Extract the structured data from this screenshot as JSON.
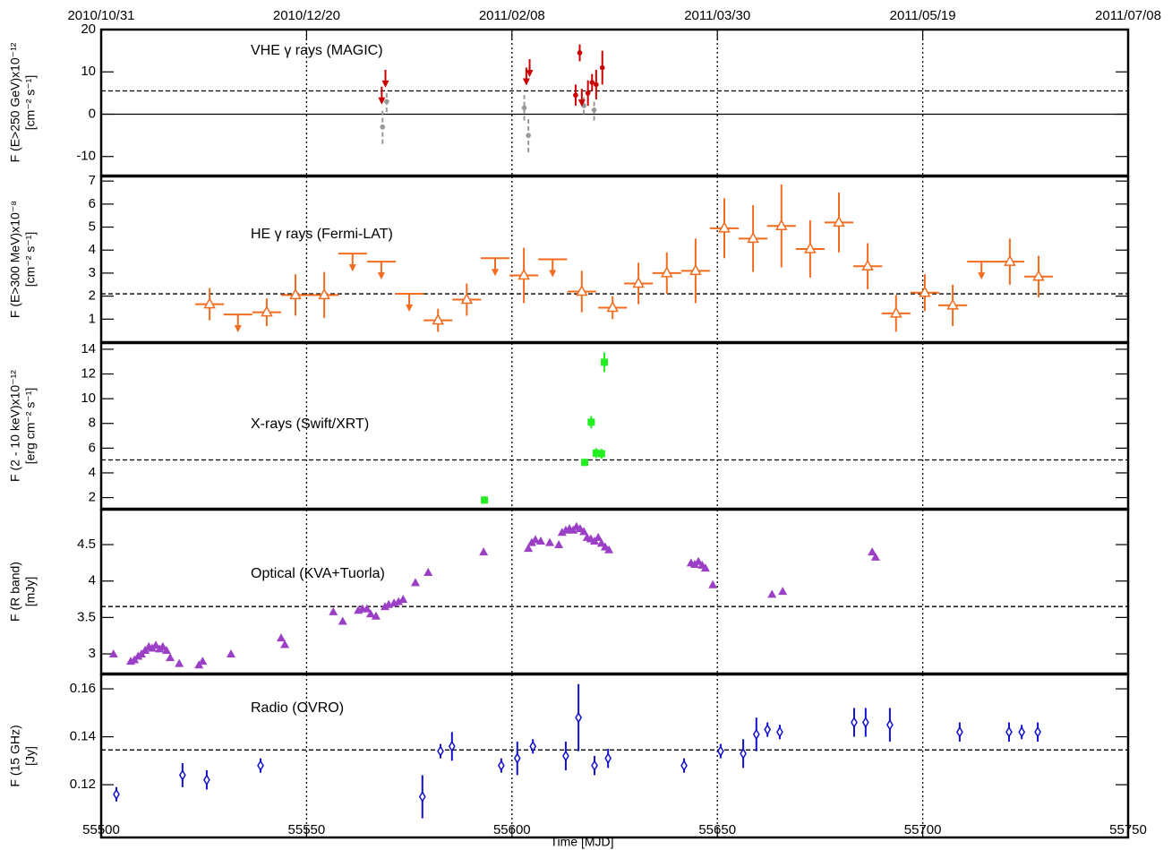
{
  "chart_data": [
    {
      "type": "scatter",
      "title": "VHE γ rays (MAGIC)",
      "ylabel": [
        "F (E>250 GeV)x10⁻¹²",
        "[cm⁻² s⁻¹]"
      ],
      "ylim": [
        -14.5,
        20
      ],
      "yticks": [
        -10,
        0,
        10,
        20
      ],
      "baseline": 5.5,
      "zero_line": true,
      "x2ticks": [
        {
          "value": 55500,
          "label": "2010/10/31"
        },
        {
          "value": 55550,
          "label": "2010/12/20"
        },
        {
          "value": 55600,
          "label": "2011/02/08"
        },
        {
          "value": 55650,
          "label": "2011/03/30"
        },
        {
          "value": 55700,
          "label": "2011/05/19"
        },
        {
          "value": 55750,
          "label": "2011/07/08"
        }
      ],
      "series": [
        {
          "color": "#999999",
          "marker": "circle",
          "dashed": true,
          "x": [
            55568.5,
            55569.5,
            55603,
            55604,
            55617.5,
            55620
          ],
          "values": [
            -3,
            3,
            1.5,
            -5,
            2,
            1
          ],
          "errors": [
            4,
            2.5,
            3,
            4,
            2,
            2.5
          ]
        },
        {
          "color": "#cc0000",
          "marker": "circle",
          "x": [
            55615.5,
            55616.5,
            55618.5,
            55619.5,
            55620.5,
            55622
          ],
          "values": [
            4.5,
            14.5,
            5,
            7.5,
            7,
            11
          ],
          "errors": [
            2.5,
            2,
            3,
            2,
            3.5,
            4
          ]
        },
        {
          "color": "#cc0000",
          "upper_limit": true,
          "x": [
            55568.3,
            55569.2,
            55603.5,
            55604.3,
            55617
          ],
          "values": [
            6.5,
            10.5,
            11,
            13,
            6
          ]
        }
      ]
    },
    {
      "type": "scatter",
      "title": "HE γ rays (Fermi-LAT)",
      "ylabel": [
        "F (E>300 MeV)x10⁻⁸",
        "[cm⁻² s⁻¹]"
      ],
      "ylim": [
        0,
        7.2
      ],
      "yticks": [
        1,
        2,
        3,
        4,
        5,
        6,
        7
      ],
      "baseline": 2.1,
      "x_halfwidth": 3.5,
      "series": [
        {
          "color": "#f26b1f",
          "marker": "triangle-open",
          "x": [
            55526.4,
            55540.3,
            55547.3,
            55554.3,
            55582,
            55589,
            55602.9,
            55617,
            55624.5,
            55630.8,
            55637.7,
            55644.7,
            55651.7,
            55658.7,
            55665.6,
            55672.6,
            55679.6,
            55686.6,
            55693.5,
            55700.5,
            55707.3,
            55721.2,
            55728.2
          ],
          "values": [
            1.65,
            1.3,
            2.05,
            2.05,
            0.95,
            1.85,
            2.9,
            2.2,
            1.5,
            2.55,
            3.0,
            3.1,
            4.95,
            4.5,
            5.05,
            4.05,
            5.2,
            3.3,
            1.25,
            2.15,
            1.6,
            3.5,
            2.85
          ],
          "errors": [
            0.7,
            0.6,
            0.9,
            1.0,
            0.5,
            0.7,
            1.2,
            0.9,
            0.5,
            0.9,
            0.9,
            1.4,
            1.3,
            1.45,
            1.8,
            1.25,
            1.3,
            1.0,
            0.8,
            0.8,
            0.9,
            1.0,
            0.9
          ]
        },
        {
          "color": "#f26b1f",
          "upper_limit": true,
          "x": [
            55533.3,
            55561.2,
            55568.2,
            55575,
            55595.9,
            55609.9,
            55714.3
          ],
          "values": [
            1.2,
            3.85,
            3.5,
            2.1,
            3.65,
            3.6,
            3.5
          ]
        }
      ]
    },
    {
      "type": "scatter",
      "title": "X-rays (Swift/XRT)",
      "ylabel": [
        "F (2 - 10 keV)x10⁻¹²",
        "[erg cm⁻² s⁻¹]"
      ],
      "ylim": [
        1.1,
        14.5
      ],
      "yticks": [
        2,
        4,
        6,
        8,
        10,
        12,
        14
      ],
      "baseline": 5.05,
      "series": [
        {
          "color": "#22ee22",
          "marker": "square",
          "x": [
            55593.3,
            55617.7,
            55619.3,
            55620.5,
            55621.8,
            55622.5
          ],
          "values": [
            1.8,
            4.85,
            8.1,
            5.6,
            5.55,
            12.95
          ],
          "errors": [
            0.3,
            0.3,
            0.5,
            0.4,
            0.4,
            0.8
          ]
        }
      ]
    },
    {
      "type": "scatter",
      "title": "Optical (KVA+Tuorla)",
      "ylabel": [
        "F (R band)",
        "[mJy]"
      ],
      "ylim": [
        2.73,
        4.98
      ],
      "yticks": [
        3,
        3.5,
        4,
        4.5
      ],
      "baseline": 3.65,
      "series": [
        {
          "color": "#9b3fc6",
          "marker": "triangle",
          "x": [
            55503,
            55507.2,
            55508.1,
            55509,
            55509.8,
            55510.7,
            55511.6,
            55512.4,
            55513.3,
            55514.2,
            55515,
            55515.9,
            55516.8,
            55519,
            55523.8,
            55524.7,
            55531.6,
            55543.8,
            55544.7,
            55556.5,
            55558.8,
            55562.6,
            55563.6,
            55564.7,
            55565.6,
            55566.9,
            55569.1,
            55570,
            55571.3,
            55572.4,
            55573.5,
            55576.5,
            55579.6,
            55593.1,
            55604,
            55604.8,
            55605.7,
            55607,
            55609.2,
            55611.4,
            55612.2,
            55613.1,
            55614,
            55614.9,
            55615.7,
            55616.6,
            55617.5,
            55618.3,
            55619.2,
            55620.1,
            55621,
            55621.8,
            55622.7,
            55623.6,
            55643.6,
            55644.5,
            55645.4,
            55646.3,
            55647.1,
            55648.9,
            55663.3,
            55665.9,
            55687.7,
            55688.5
          ],
          "values": [
            3.0,
            2.9,
            2.92,
            2.97,
            3.0,
            3.05,
            3.1,
            3.08,
            3.12,
            3.07,
            3.1,
            3.05,
            2.95,
            2.87,
            2.85,
            2.9,
            3.0,
            3.22,
            3.13,
            3.58,
            3.45,
            3.6,
            3.62,
            3.62,
            3.55,
            3.52,
            3.65,
            3.68,
            3.7,
            3.72,
            3.75,
            3.98,
            4.12,
            4.4,
            4.45,
            4.53,
            4.57,
            4.55,
            4.53,
            4.5,
            4.67,
            4.7,
            4.72,
            4.7,
            4.75,
            4.72,
            4.68,
            4.6,
            4.58,
            4.55,
            4.6,
            4.52,
            4.47,
            4.43,
            4.25,
            4.23,
            4.27,
            4.22,
            4.18,
            3.95,
            3.82,
            3.86,
            4.4,
            4.33
          ]
        }
      ]
    },
    {
      "type": "scatter",
      "title": "Radio (OVRO)",
      "ylabel": [
        "F (15 GHz)",
        "[Jy]"
      ],
      "ylim": [
        0.098,
        0.166
      ],
      "yticks": [
        0.12,
        0.14,
        0.16
      ],
      "baseline": 0.1345,
      "xlim": [
        55500,
        55750
      ],
      "xticks": [
        55500,
        55550,
        55600,
        55650,
        55700,
        55750
      ],
      "xlabel": "Time [MJD]",
      "series": [
        {
          "color": "#1010cc",
          "marker": "diamond-open",
          "x": [
            55503.7,
            55519.8,
            55525.7,
            55538.8,
            55578.2,
            55582.6,
            55585.4,
            55597.4,
            55601.3,
            55605.1,
            55613.1,
            55616.2,
            55620.1,
            55623.4,
            55641.9,
            55650.8,
            55656.3,
            55659.5,
            55662.2,
            55665.2,
            55683.3,
            55686.1,
            55692,
            55709,
            55721,
            55724.1,
            55728
          ],
          "values": [
            0.116,
            0.124,
            0.122,
            0.128,
            0.115,
            0.134,
            0.136,
            0.128,
            0.131,
            0.136,
            0.132,
            0.148,
            0.128,
            0.131,
            0.128,
            0.134,
            0.133,
            0.141,
            0.143,
            0.142,
            0.146,
            0.146,
            0.145,
            0.142,
            0.142,
            0.142,
            0.142
          ],
          "errors": [
            0.003,
            0.005,
            0.004,
            0.003,
            0.009,
            0.003,
            0.006,
            0.003,
            0.007,
            0.003,
            0.006,
            0.014,
            0.004,
            0.004,
            0.003,
            0.003,
            0.006,
            0.007,
            0.003,
            0.003,
            0.006,
            0.006,
            0.007,
            0.004,
            0.004,
            0.003,
            0.004
          ]
        }
      ]
    }
  ]
}
